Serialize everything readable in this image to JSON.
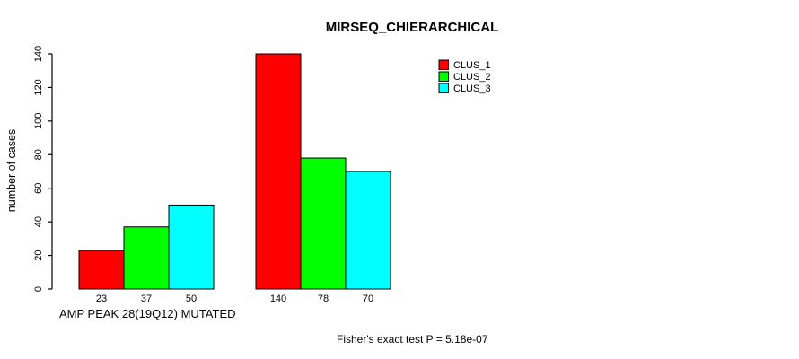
{
  "chart_data": {
    "type": "bar",
    "title": "MIRSEQ_CHIERARCHICAL",
    "ylabel": "number of cases",
    "xlabel": "AMP PEAK 28(19Q12) MUTATED",
    "ylim": [
      0,
      140
    ],
    "yticks": [
      0,
      20,
      40,
      60,
      80,
      100,
      120,
      140
    ],
    "grid": false,
    "legend_position": "top-right",
    "categories": [
      "AMP PEAK 28(19Q12) MUTATED",
      ""
    ],
    "series": [
      {
        "name": "CLUS_1",
        "color": "#ff0000",
        "values": [
          23,
          140
        ]
      },
      {
        "name": "CLUS_2",
        "color": "#00ff00",
        "values": [
          37,
          78
        ]
      },
      {
        "name": "CLUS_3",
        "color": "#00ffff",
        "values": [
          50,
          70
        ]
      }
    ],
    "bar_value_labels_shown": true,
    "annotation": "Fisher's exact test P = 5.18e-07"
  },
  "style": {
    "background": "#ffffff",
    "axis_color": "#000000",
    "bar_border_color": "#000000",
    "text_color": "#000000"
  }
}
